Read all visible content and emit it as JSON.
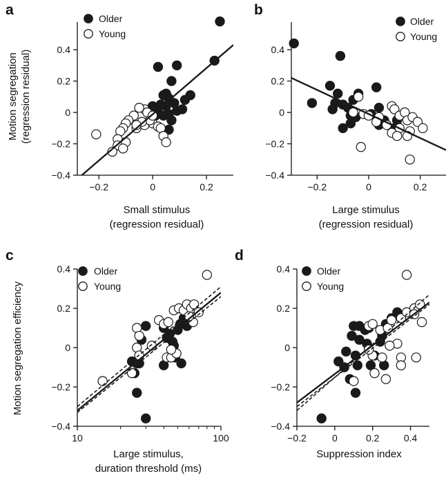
{
  "panels": [
    {
      "letter": "a",
      "legend": {
        "older": "Older",
        "young": "Young"
      },
      "ylabel_lines": [
        "Motion segregation",
        "(regression residual)"
      ],
      "xlabel_lines": [
        "Small stimulus",
        "(regression residual)"
      ]
    },
    {
      "letter": "b",
      "legend": {
        "older": "Older",
        "young": "Young"
      },
      "ylabel_lines": [],
      "xlabel_lines": [
        "Large stimulus",
        "(regression residual)"
      ]
    },
    {
      "letter": "c",
      "legend": {
        "older": "Older",
        "young": "Young"
      },
      "ylabel_lines": [
        "Motion segregation efficiency"
      ],
      "xlabel_lines": [
        "Large stimulus,",
        "duration threshold (ms)"
      ]
    },
    {
      "letter": "d",
      "legend": {
        "older": "Older",
        "young": "Young"
      },
      "ylabel_lines": [],
      "xlabel_lines": [
        "Suppression index"
      ]
    }
  ],
  "colors": {
    "older_fill": "#1a1a1a",
    "young_fill": "#ffffff",
    "stroke": "#1a1a1a",
    "axis": "#111111"
  },
  "chart_data": [
    {
      "panel": "a",
      "type": "scatter",
      "xlabel": "Small stimulus (regression residual)",
      "ylabel": "Motion segregation (regression residual)",
      "xlim": [
        -0.28,
        0.3
      ],
      "ylim": [
        -0.4,
        0.6
      ],
      "xticks": [
        -0.2,
        0,
        0.2
      ],
      "xticklabels": [
        "−0.2",
        "0",
        "0.2"
      ],
      "yticks": [
        -0.4,
        -0.2,
        0,
        0.2,
        0.4
      ],
      "yticklabels": [
        "−0.4",
        "−0.2",
        "0",
        "0.2",
        "0.4"
      ],
      "x_scale": "linear",
      "legend_position": "top-left",
      "series": [
        {
          "name": "Older",
          "marker": "filled",
          "points": [
            [
              0.25,
              0.58
            ],
            [
              0.23,
              0.33
            ],
            [
              0.02,
              0.29
            ],
            [
              0.09,
              0.3
            ],
            [
              0.07,
              0.2
            ],
            [
              0.06,
              0.09
            ],
            [
              0.14,
              0.11
            ],
            [
              0.12,
              0.08
            ],
            [
              0.08,
              0.06
            ],
            [
              0.0,
              0.04
            ],
            [
              0.02,
              0.0
            ],
            [
              0.04,
              0.11
            ],
            [
              0.05,
              0.12
            ],
            [
              0.03,
              0.05
            ],
            [
              0.05,
              0.04
            ],
            [
              0.06,
              -0.01
            ],
            [
              0.09,
              0.01
            ],
            [
              0.11,
              0.02
            ],
            [
              0.07,
              -0.05
            ],
            [
              0.06,
              -0.11
            ],
            [
              0.04,
              -0.02
            ],
            [
              0.02,
              0.03
            ],
            [
              0.01,
              -0.02
            ]
          ]
        },
        {
          "name": "Young",
          "marker": "open",
          "points": [
            [
              -0.03,
              0.02
            ],
            [
              -0.05,
              0.03
            ],
            [
              -0.02,
              0.0
            ],
            [
              -0.07,
              -0.02
            ],
            [
              -0.09,
              -0.05
            ],
            [
              -0.1,
              -0.07
            ],
            [
              -0.06,
              -0.1
            ],
            [
              -0.11,
              -0.1
            ],
            [
              -0.12,
              -0.12
            ],
            [
              -0.13,
              -0.17
            ],
            [
              -0.1,
              -0.19
            ],
            [
              -0.13,
              -0.21
            ],
            [
              -0.11,
              -0.23
            ],
            [
              -0.15,
              -0.25
            ],
            [
              -0.21,
              -0.14
            ],
            [
              -0.03,
              -0.08
            ],
            [
              0.0,
              -0.07
            ],
            [
              0.02,
              -0.09
            ],
            [
              0.03,
              -0.1
            ],
            [
              -0.01,
              -0.05
            ],
            [
              -0.04,
              -0.06
            ],
            [
              -0.06,
              -0.08
            ],
            [
              0.04,
              -0.15
            ],
            [
              0.05,
              -0.19
            ],
            [
              0.0,
              -0.02
            ]
          ]
        }
      ],
      "fit_lines": [
        {
          "style": "solid",
          "from": [
            -0.27,
            -0.41
          ],
          "to": [
            0.3,
            0.43
          ]
        }
      ]
    },
    {
      "panel": "b",
      "type": "scatter",
      "xlabel": "Large stimulus (regression residual)",
      "ylabel": "",
      "xlim": [
        -0.3,
        0.3
      ],
      "ylim": [
        -0.4,
        0.6
      ],
      "xticks": [
        -0.2,
        0,
        0.2
      ],
      "xticklabels": [
        "−0.2",
        "0",
        "0.2"
      ],
      "yticks": [
        -0.4,
        -0.2,
        0,
        0.2,
        0.4
      ],
      "yticklabels": [
        "−0.4",
        "−0.2",
        "0",
        "0.2",
        "0.4"
      ],
      "x_scale": "linear",
      "legend_position": "top-right",
      "series": [
        {
          "name": "Older",
          "marker": "filled",
          "points": [
            [
              -0.29,
              0.44
            ],
            [
              -0.11,
              0.36
            ],
            [
              -0.15,
              0.17
            ],
            [
              -0.12,
              0.12
            ],
            [
              -0.04,
              0.12
            ],
            [
              -0.06,
              0.08
            ],
            [
              0.03,
              0.16
            ],
            [
              -0.13,
              0.06
            ],
            [
              -0.1,
              0.05
            ],
            [
              -0.08,
              0.03
            ],
            [
              -0.14,
              0.02
            ],
            [
              -0.07,
              -0.02
            ],
            [
              -0.05,
              -0.03
            ],
            [
              -0.22,
              0.06
            ],
            [
              -0.1,
              -0.1
            ],
            [
              -0.07,
              -0.07
            ],
            [
              0.04,
              0.03
            ],
            [
              0.06,
              -0.05
            ],
            [
              0.04,
              -0.08
            ],
            [
              0.11,
              -0.05
            ],
            [
              0.1,
              -0.1
            ],
            [
              0.01,
              -0.01
            ]
          ]
        },
        {
          "name": "Young",
          "marker": "open",
          "points": [
            [
              -0.04,
              0.1
            ],
            [
              -0.06,
              0.0
            ],
            [
              -0.02,
              -0.01
            ],
            [
              0.0,
              -0.02
            ],
            [
              0.04,
              -0.03
            ],
            [
              0.09,
              0.04
            ],
            [
              0.1,
              0.02
            ],
            [
              0.12,
              -0.02
            ],
            [
              0.14,
              0.0
            ],
            [
              0.15,
              -0.05
            ],
            [
              0.17,
              -0.03
            ],
            [
              0.19,
              -0.06
            ],
            [
              0.21,
              -0.1
            ],
            [
              0.16,
              -0.12
            ],
            [
              0.12,
              -0.1
            ],
            [
              0.09,
              -0.13
            ],
            [
              0.11,
              -0.15
            ],
            [
              0.15,
              -0.15
            ],
            [
              0.07,
              -0.08
            ],
            [
              -0.03,
              -0.22
            ],
            [
              0.16,
              -0.3
            ],
            [
              0.03,
              -0.06
            ]
          ]
        }
      ],
      "fit_lines": [
        {
          "style": "solid",
          "from": [
            -0.3,
            0.22
          ],
          "to": [
            0.3,
            -0.24
          ]
        }
      ]
    },
    {
      "panel": "c",
      "type": "scatter",
      "xlabel": "Large stimulus, duration threshold (ms)",
      "ylabel": "Motion segregation efficiency",
      "xlim": [
        10,
        100
      ],
      "ylim": [
        -0.4,
        0.4
      ],
      "xticks": [
        10,
        100
      ],
      "xticklabels": [
        "10",
        "100"
      ],
      "yticks": [
        -0.4,
        -0.2,
        0,
        0.2,
        0.4
      ],
      "yticklabels": [
        "−0.4",
        "−0.2",
        "0",
        "0.2",
        "0.4"
      ],
      "x_scale": "log",
      "legend_position": "top-left",
      "series": [
        {
          "name": "Older",
          "marker": "filled",
          "points": [
            [
              30,
              -0.36
            ],
            [
              26,
              -0.23
            ],
            [
              25,
              -0.13
            ],
            [
              27,
              -0.08
            ],
            [
              30,
              0.11
            ],
            [
              28,
              0.04
            ],
            [
              40,
              0.1
            ],
            [
              42,
              0.05
            ],
            [
              44,
              0.07
            ],
            [
              46,
              0.03
            ],
            [
              47,
              0.01
            ],
            [
              50,
              0.09
            ],
            [
              52,
              0.12
            ],
            [
              55,
              0.15
            ],
            [
              57,
              0.18
            ],
            [
              58,
              0.11
            ],
            [
              48,
              -0.05
            ],
            [
              40,
              -0.09
            ],
            [
              53,
              -0.08
            ],
            [
              24,
              -0.07
            ],
            [
              26,
              -0.08
            ]
          ]
        },
        {
          "name": "Young",
          "marker": "open",
          "points": [
            [
              80,
              0.37
            ],
            [
              26,
              0.1
            ],
            [
              27,
              0.06
            ],
            [
              26,
              0.0
            ],
            [
              27,
              -0.04
            ],
            [
              33,
              0.01
            ],
            [
              37,
              0.14
            ],
            [
              40,
              0.12
            ],
            [
              43,
              0.13
            ],
            [
              47,
              0.19
            ],
            [
              51,
              0.2
            ],
            [
              55,
              0.19
            ],
            [
              58,
              0.22
            ],
            [
              62,
              0.2
            ],
            [
              65,
              0.22
            ],
            [
              70,
              0.18
            ],
            [
              64,
              0.13
            ],
            [
              60,
              0.16
            ],
            [
              42,
              -0.05
            ],
            [
              45,
              -0.05
            ],
            [
              49,
              -0.03
            ],
            [
              45,
              -0.01
            ],
            [
              15,
              -0.17
            ],
            [
              24,
              -0.13
            ]
          ]
        }
      ],
      "fit_lines": [
        {
          "style": "solid",
          "from": [
            10,
            -0.32
          ],
          "to": [
            100,
            0.28
          ]
        },
        {
          "style": "dashed",
          "from": [
            10,
            -0.3
          ],
          "to": [
            100,
            0.31
          ]
        },
        {
          "style": "dashed",
          "from": [
            10,
            -0.33
          ],
          "to": [
            100,
            0.26
          ]
        }
      ]
    },
    {
      "panel": "d",
      "type": "scatter",
      "xlabel": "Suppression index",
      "ylabel": "",
      "xlim": [
        -0.2,
        0.5
      ],
      "ylim": [
        -0.4,
        0.4
      ],
      "xticks": [
        -0.2,
        0,
        0.2,
        0.4
      ],
      "xticklabels": [
        "−0.2",
        "0",
        "0.2",
        "0.4"
      ],
      "yticks": [
        -0.4,
        -0.2,
        0,
        0.2,
        0.4
      ],
      "yticklabels": [
        "−0.4",
        "−0.2",
        "0",
        "0.2",
        "0.4"
      ],
      "x_scale": "linear",
      "legend_position": "top-left",
      "series": [
        {
          "name": "Older",
          "marker": "filled",
          "points": [
            [
              -0.07,
              -0.36
            ],
            [
              0.11,
              -0.23
            ],
            [
              0.08,
              -0.16
            ],
            [
              0.12,
              -0.09
            ],
            [
              0.19,
              -0.09
            ],
            [
              0.21,
              -0.04
            ],
            [
              0.11,
              -0.04
            ],
            [
              0.02,
              -0.07
            ],
            [
              0.06,
              -0.02
            ],
            [
              0.05,
              -0.1
            ],
            [
              0.09,
              0.06
            ],
            [
              0.13,
              0.04
            ],
            [
              0.17,
              0.02
            ],
            [
              0.16,
              0.09
            ],
            [
              0.13,
              0.11
            ],
            [
              0.1,
              0.11
            ],
            [
              0.18,
              0.1
            ],
            [
              0.24,
              0.03
            ],
            [
              0.25,
              0.06
            ],
            [
              0.27,
              0.12
            ],
            [
              0.3,
              0.15
            ],
            [
              0.33,
              0.18
            ],
            [
              0.26,
              -0.09
            ]
          ]
        },
        {
          "name": "Young",
          "marker": "open",
          "points": [
            [
              0.38,
              0.37
            ],
            [
              0.18,
              0.11
            ],
            [
              0.2,
              0.12
            ],
            [
              0.24,
              0.09
            ],
            [
              0.28,
              0.1
            ],
            [
              0.3,
              0.14
            ],
            [
              0.35,
              0.15
            ],
            [
              0.38,
              0.18
            ],
            [
              0.42,
              0.2
            ],
            [
              0.45,
              0.22
            ],
            [
              0.46,
              0.13
            ],
            [
              0.42,
              0.17
            ],
            [
              0.33,
              0.02
            ],
            [
              0.29,
              0.01
            ],
            [
              0.2,
              -0.04
            ],
            [
              0.18,
              -0.01
            ],
            [
              0.25,
              -0.05
            ],
            [
              0.21,
              -0.13
            ],
            [
              0.35,
              -0.05
            ],
            [
              0.35,
              -0.09
            ],
            [
              0.43,
              -0.05
            ],
            [
              0.27,
              -0.16
            ],
            [
              0.1,
              -0.17
            ]
          ]
        }
      ],
      "fit_lines": [
        {
          "style": "solid",
          "from": [
            -0.2,
            -0.28
          ],
          "to": [
            0.5,
            0.23
          ]
        },
        {
          "style": "dashed",
          "from": [
            -0.2,
            -0.32
          ],
          "to": [
            0.5,
            0.27
          ]
        },
        {
          "style": "dashed",
          "from": [
            -0.2,
            -0.3
          ],
          "to": [
            0.5,
            0.22
          ]
        }
      ]
    }
  ]
}
